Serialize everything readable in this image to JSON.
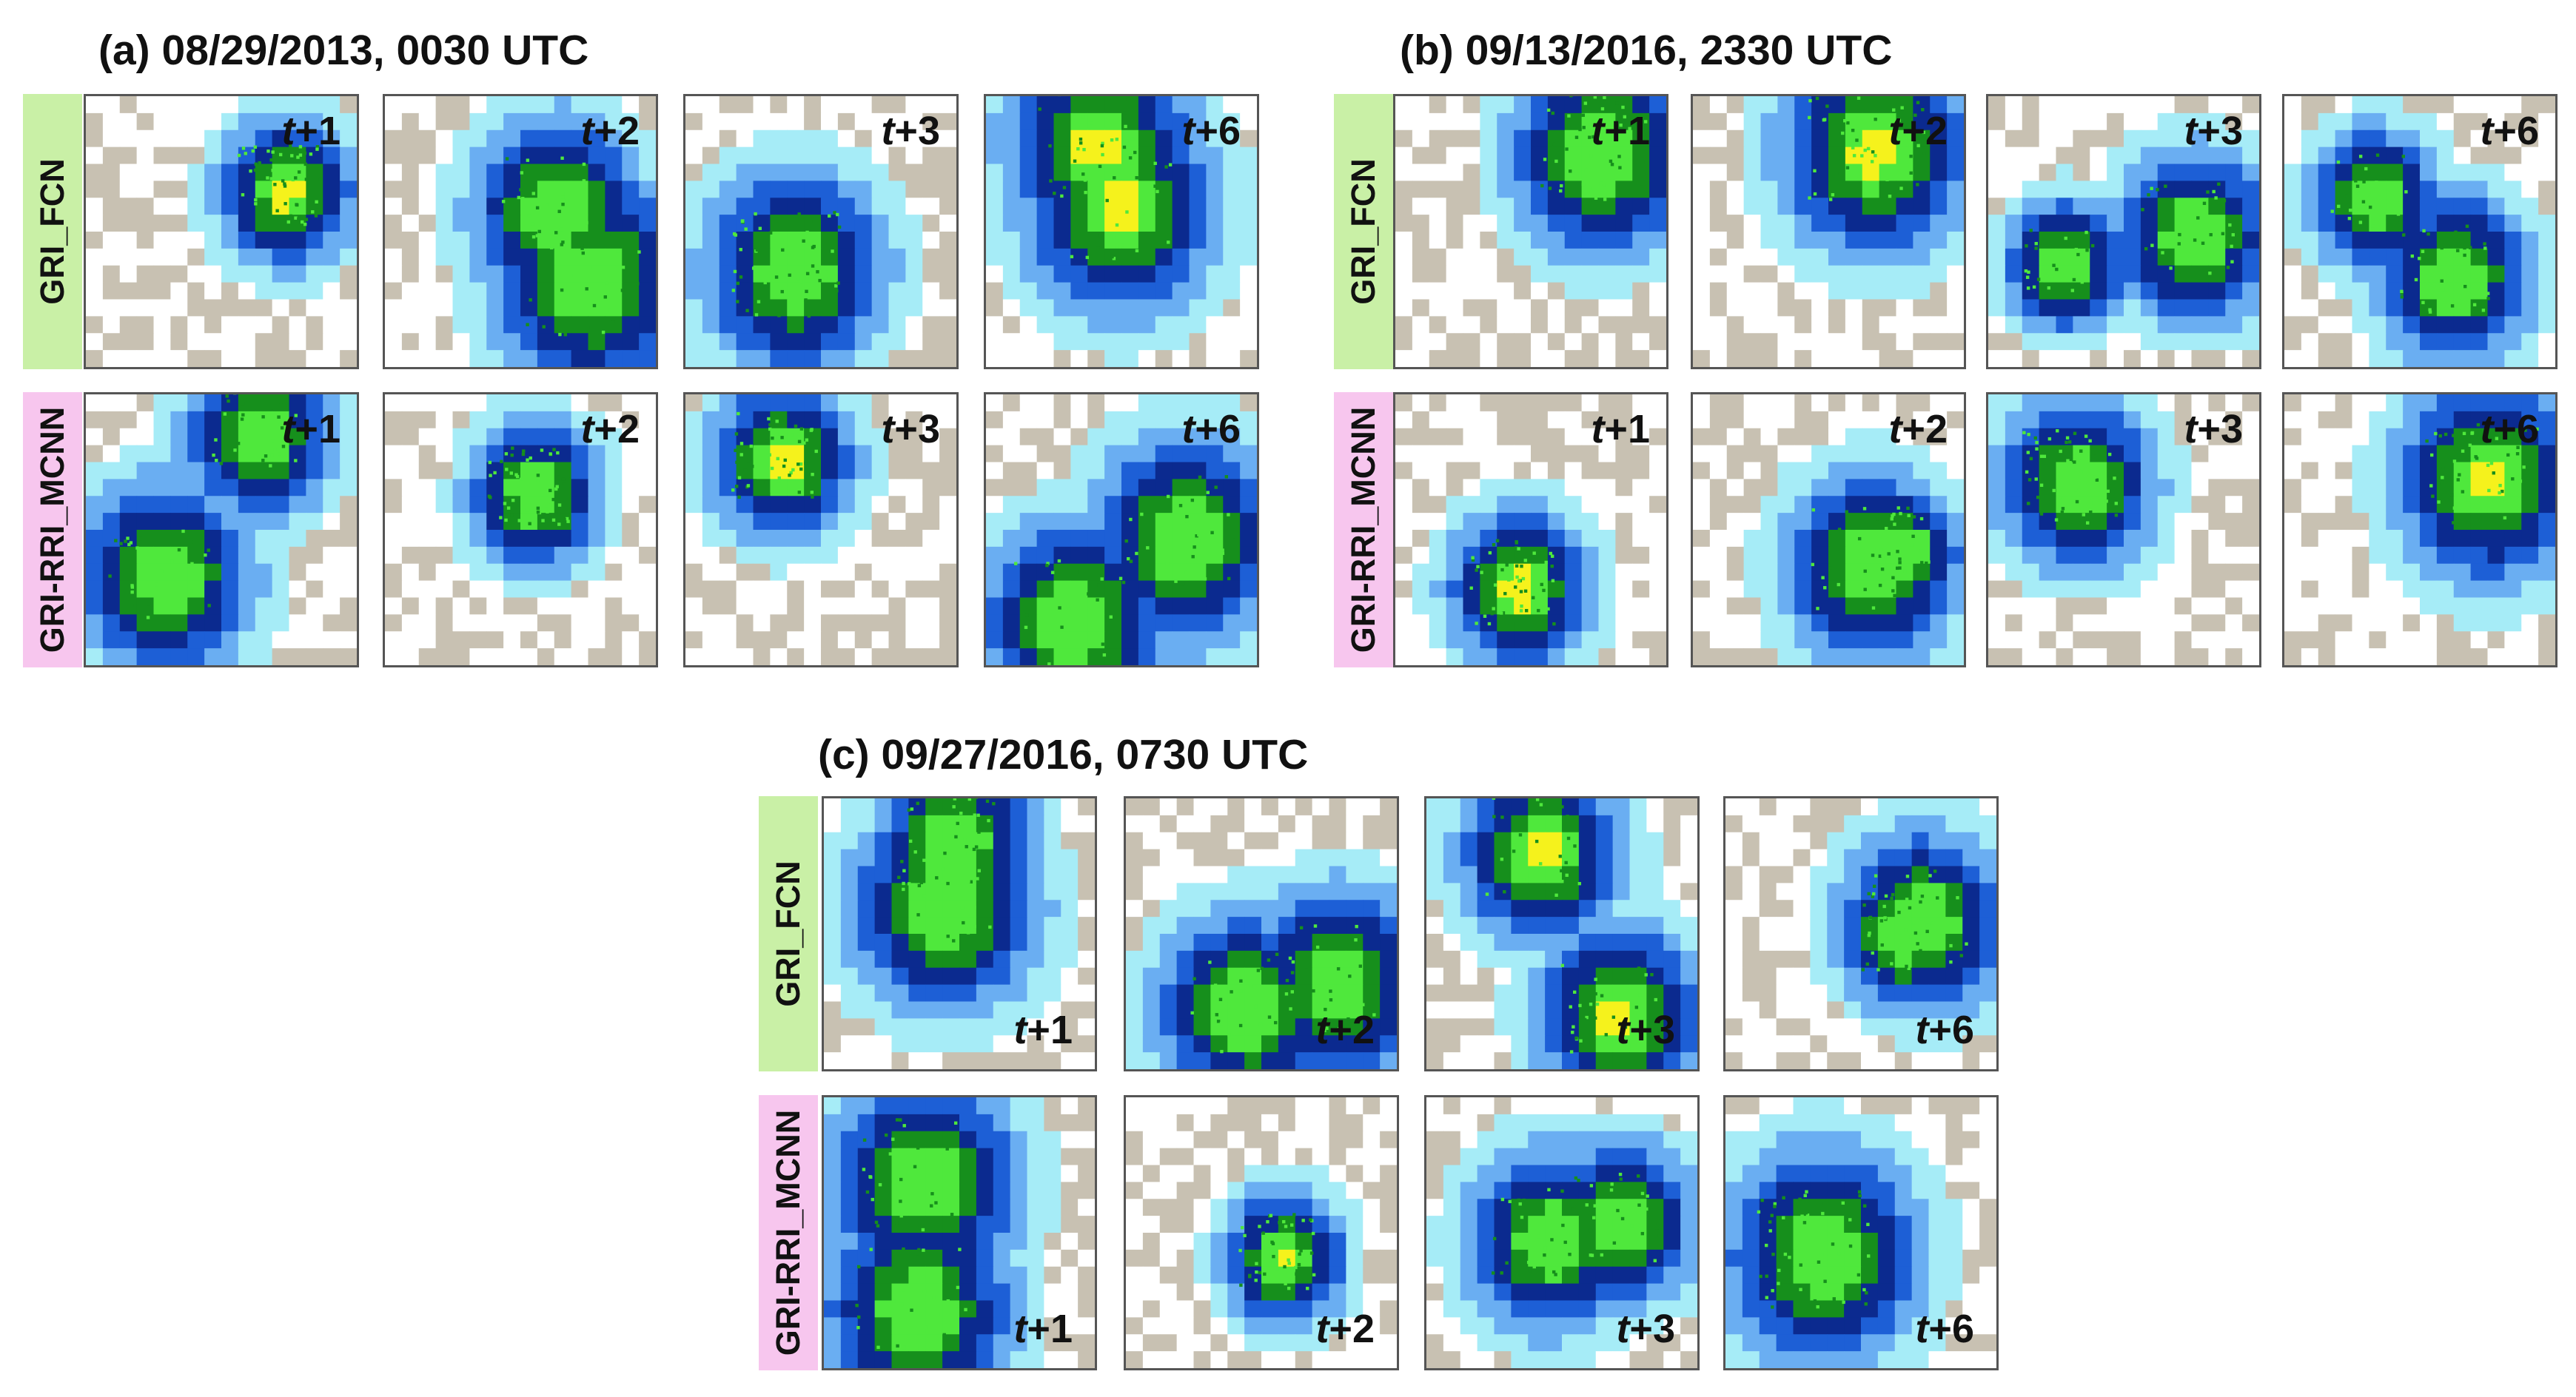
{
  "colors": {
    "row_label_gri_fcn": "#c9f0a6",
    "row_label_gri_rri_mcnn": "#f7c6ee",
    "land": "#c8c1b2",
    "precip_light": "#a6ecf7",
    "precip_moderate": "#6aaef2",
    "precip_heavy": "#1d5fd6",
    "precip_very_heavy": "#0b2a8f",
    "precip_intense": "#168f1c",
    "precip_very_intense": "#4fe83c",
    "precip_extreme": "#f5f21c"
  },
  "panels": [
    {
      "id": "a",
      "title": "(a) 08/29/2013, 0030 UTC",
      "rows": [
        {
          "model": "GRI_FCN",
          "steps": [
            {
              "prefix": "t",
              "suffix": "+1"
            },
            {
              "prefix": "t",
              "suffix": "+2"
            },
            {
              "prefix": "t",
              "suffix": "+3"
            },
            {
              "prefix": "t",
              "suffix": "+6"
            }
          ]
        },
        {
          "model": "GRI-RRI_MCNN",
          "steps": [
            {
              "prefix": "t",
              "suffix": "+1"
            },
            {
              "prefix": "t",
              "suffix": "+2"
            },
            {
              "prefix": "t",
              "suffix": "+3"
            },
            {
              "prefix": "t",
              "suffix": "+6"
            }
          ]
        }
      ]
    },
    {
      "id": "b",
      "title": "(b) 09/13/2016, 2330 UTC",
      "rows": [
        {
          "model": "GRI_FCN",
          "steps": [
            {
              "prefix": "t",
              "suffix": "+1"
            },
            {
              "prefix": "t",
              "suffix": "+2"
            },
            {
              "prefix": "t",
              "suffix": "+3"
            },
            {
              "prefix": "t",
              "suffix": "+6"
            }
          ]
        },
        {
          "model": "GRI-RRI_MCNN",
          "steps": [
            {
              "prefix": "t",
              "suffix": "+1"
            },
            {
              "prefix": "t",
              "suffix": "+2"
            },
            {
              "prefix": "t",
              "suffix": "+3"
            },
            {
              "prefix": "t",
              "suffix": "+6"
            }
          ]
        }
      ]
    },
    {
      "id": "c",
      "title": "(c) 09/27/2016, 0730 UTC",
      "rows": [
        {
          "model": "GRI_FCN",
          "steps": [
            {
              "prefix": "t",
              "suffix": "+1"
            },
            {
              "prefix": "t",
              "suffix": "+2"
            },
            {
              "prefix": "t",
              "suffix": "+3"
            },
            {
              "prefix": "t",
              "suffix": "+6"
            }
          ]
        },
        {
          "model": "GRI-RRI_MCNN",
          "steps": [
            {
              "prefix": "t",
              "suffix": "+1"
            },
            {
              "prefix": "t",
              "suffix": "+2"
            },
            {
              "prefix": "t",
              "suffix": "+3"
            },
            {
              "prefix": "t",
              "suffix": "+6"
            }
          ]
        }
      ]
    }
  ]
}
